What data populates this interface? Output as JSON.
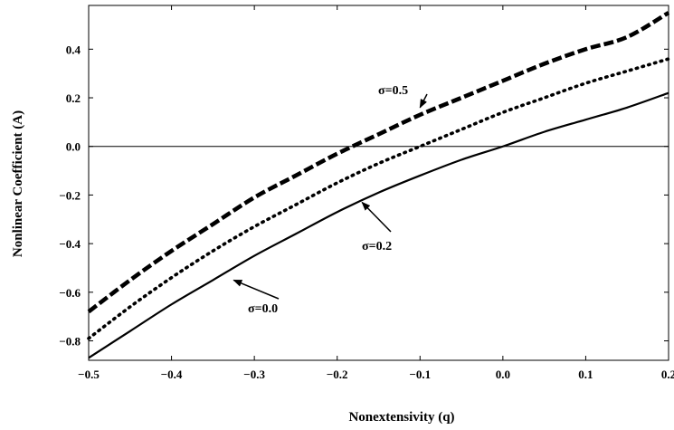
{
  "chart_data": {
    "type": "line",
    "title": "",
    "xlabel": "Nonextensivity (q)",
    "ylabel": "Nonlinear Coefficient (A)",
    "xlim": [
      -0.5,
      0.2
    ],
    "ylim": [
      -0.88,
      0.58
    ],
    "x_ticks": [
      -0.5,
      -0.4,
      -0.3,
      -0.2,
      -0.1,
      0.0,
      0.1,
      0.2
    ],
    "x_tick_labels": [
      "−0.5",
      "−0.4",
      "−0.3",
      "−0.2",
      "−0.1",
      "0.0",
      "0.1",
      "0.2"
    ],
    "y_ticks": [
      -0.8,
      -0.6,
      -0.4,
      -0.2,
      0.0,
      0.2,
      0.4
    ],
    "y_tick_labels": [
      "−0.8",
      "−0.6",
      "−0.4",
      "−0.2",
      "0.0",
      "0.2",
      "0.4"
    ],
    "reference_line_y": 0.0,
    "grid": false,
    "series": [
      {
        "style": "solid",
        "x": [
          -0.5,
          -0.45,
          -0.4,
          -0.35,
          -0.3,
          -0.25,
          -0.2,
          -0.15,
          -0.1,
          -0.05,
          0.0,
          0.05,
          0.1,
          0.15,
          0.2
        ],
        "y": [
          -0.87,
          -0.76,
          -0.65,
          -0.55,
          -0.45,
          -0.36,
          -0.27,
          -0.19,
          -0.12,
          -0.055,
          0.0,
          0.06,
          0.11,
          0.16,
          0.22
        ]
      },
      {
        "style": "dotted",
        "x": [
          -0.5,
          -0.45,
          -0.4,
          -0.35,
          -0.3,
          -0.25,
          -0.2,
          -0.15,
          -0.1,
          -0.05,
          0.0,
          0.05,
          0.1,
          0.15,
          0.2
        ],
        "y": [
          -0.79,
          -0.66,
          -0.54,
          -0.43,
          -0.33,
          -0.24,
          -0.15,
          -0.07,
          0.0,
          0.07,
          0.14,
          0.2,
          0.26,
          0.31,
          0.36
        ]
      },
      {
        "style": "dashed",
        "x": [
          -0.5,
          -0.45,
          -0.4,
          -0.35,
          -0.3,
          -0.25,
          -0.2,
          -0.15,
          -0.1,
          -0.05,
          0.0,
          0.05,
          0.1,
          0.15,
          0.2
        ],
        "y": [
          -0.68,
          -0.55,
          -0.43,
          -0.32,
          -0.21,
          -0.12,
          -0.03,
          0.05,
          0.13,
          0.2,
          0.27,
          0.34,
          0.4,
          0.45,
          0.55
        ]
      }
    ],
    "annotations": [
      {
        "text": "σ=0.5",
        "series_index": 2,
        "arrow_to": [
          -0.1,
          0.16
        ]
      },
      {
        "text": "σ=0.2",
        "series_index": 1,
        "arrow_to": [
          -0.17,
          -0.23
        ]
      },
      {
        "text": "σ=0.0",
        "series_index": 0,
        "arrow_to": [
          -0.325,
          -0.55
        ]
      }
    ]
  }
}
